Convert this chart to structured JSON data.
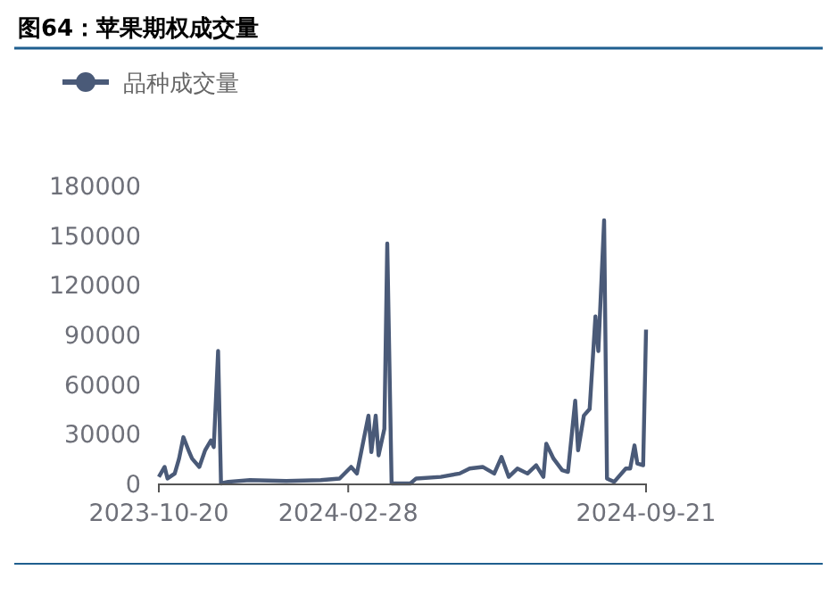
{
  "chart_data": {
    "type": "line",
    "title": "图64：苹果期权成交量",
    "x": [
      "2023-10-20",
      "2023-10-24",
      "2023-10-26",
      "2023-10-31",
      "2023-11-03",
      "2023-11-06",
      "2023-11-10",
      "2023-11-12",
      "2023-11-17",
      "2023-11-21",
      "2023-11-25",
      "2023-11-27",
      "2023-11-30",
      "2023-12-02",
      "2023-12-07",
      "2023-12-22",
      "2024-01-16",
      "2024-02-09",
      "2024-02-22",
      "2024-03-01",
      "2024-03-05",
      "2024-03-13",
      "2024-03-15",
      "2024-03-18",
      "2024-03-20",
      "2024-03-24",
      "2024-03-26",
      "2024-03-29",
      "2024-04-11",
      "2024-04-15",
      "2024-05-02",
      "2024-05-15",
      "2024-05-22",
      "2024-05-31",
      "2024-06-08",
      "2024-06-13",
      "2024-06-18",
      "2024-06-24",
      "2024-07-01",
      "2024-07-07",
      "2024-07-12",
      "2024-07-14",
      "2024-07-19",
      "2024-07-25",
      "2024-07-29",
      "2024-08-03",
      "2024-08-05",
      "2024-08-09",
      "2024-08-13",
      "2024-08-17",
      "2024-08-19",
      "2024-08-23",
      "2024-08-25",
      "2024-08-30",
      "2024-09-07",
      "2024-09-10",
      "2024-09-13",
      "2024-09-15",
      "2024-09-19",
      "2024-09-21"
    ],
    "series": [
      {
        "name": "品种成交量",
        "color": "#4a5a78",
        "values": [
          4000,
          10000,
          3000,
          6000,
          15000,
          28000,
          19000,
          15000,
          10000,
          20000,
          26000,
          22000,
          80000,
          0,
          1000,
          2000,
          1500,
          2000,
          3000,
          10000,
          6000,
          41000,
          19000,
          41000,
          17000,
          33000,
          145000,
          0,
          0,
          3000,
          4000,
          6000,
          9000,
          10000,
          6000,
          16000,
          4000,
          9000,
          6000,
          11000,
          4000,
          24000,
          15000,
          8000,
          7000,
          50000,
          20000,
          41000,
          45000,
          101000,
          80000,
          159000,
          3000,
          1000,
          9000,
          9000,
          23000,
          12000,
          11000,
          93000
        ]
      }
    ],
    "xlim": [
      "2023-10-20",
      "2024-09-21"
    ],
    "xticks": [
      {
        "value": "2023-10-20",
        "label": "2023-10-20"
      },
      {
        "value": "2024-02-28",
        "label": "2024-02-28"
      },
      {
        "value": "2024-09-21",
        "label": "2024-09-21"
      }
    ],
    "ylim": [
      0,
      180000
    ],
    "yticks": [
      0,
      30000,
      60000,
      90000,
      120000,
      150000,
      180000
    ],
    "legend": "top left"
  }
}
